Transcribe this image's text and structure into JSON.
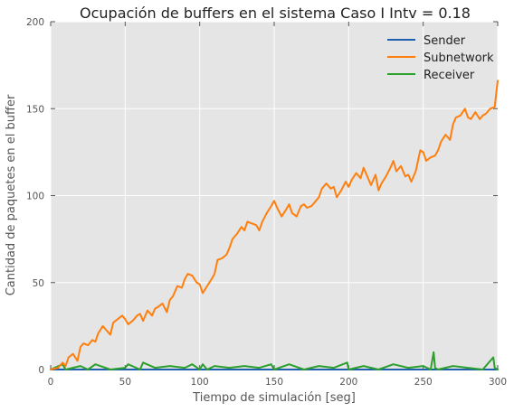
{
  "chart_data": {
    "type": "line",
    "title": "Ocupación de buffers en el sistema Caso I Intv = 0.18",
    "xlabel": "Tiempo de simulación [seg]",
    "ylabel": "Cantidad de paquetes en el buffer",
    "xlim": [
      0,
      300
    ],
    "ylim": [
      0,
      200
    ],
    "xticks": [
      0,
      50,
      100,
      150,
      200,
      250,
      300
    ],
    "yticks": [
      0,
      50,
      100,
      150,
      200
    ],
    "grid": true,
    "legend_position": "top-right",
    "background": "#e5e5e5",
    "series": [
      {
        "name": "Sender",
        "color": "#1f5fae",
        "x": [
          0,
          300
        ],
        "y": [
          0,
          0
        ]
      },
      {
        "name": "Subnetwork",
        "color": "#ff7f0e",
        "x": [
          0,
          5,
          8,
          10,
          12,
          15,
          18,
          20,
          22,
          25,
          28,
          30,
          32,
          35,
          38,
          40,
          42,
          45,
          48,
          50,
          52,
          55,
          58,
          60,
          62,
          65,
          68,
          70,
          72,
          75,
          78,
          80,
          82,
          85,
          88,
          90,
          92,
          95,
          98,
          100,
          102,
          105,
          108,
          110,
          112,
          115,
          118,
          120,
          122,
          125,
          128,
          130,
          132,
          135,
          138,
          140,
          142,
          145,
          148,
          150,
          152,
          155,
          158,
          160,
          162,
          165,
          168,
          170,
          172,
          175,
          178,
          180,
          182,
          185,
          188,
          190,
          192,
          195,
          198,
          200,
          202,
          205,
          208,
          210,
          212,
          215,
          218,
          220,
          222,
          225,
          228,
          230,
          232,
          235,
          238,
          240,
          242,
          245,
          248,
          250,
          252,
          255,
          258,
          260,
          262,
          265,
          268,
          270,
          272,
          275,
          278,
          280,
          282,
          285,
          288,
          290,
          292,
          295,
          298,
          300
        ],
        "y": [
          0,
          1,
          4,
          2,
          7,
          9,
          5,
          13,
          15,
          14,
          17,
          16,
          21,
          25,
          22,
          20,
          27,
          29,
          31,
          29,
          26,
          28,
          31,
          32,
          28,
          34,
          31,
          35,
          36,
          38,
          33,
          40,
          42,
          48,
          47,
          52,
          55,
          54,
          50,
          49,
          44,
          48,
          52,
          55,
          63,
          64,
          66,
          70,
          75,
          78,
          82,
          80,
          85,
          84,
          83,
          80,
          85,
          90,
          94,
          97,
          93,
          88,
          92,
          95,
          90,
          88,
          94,
          95,
          93,
          94,
          97,
          99,
          104,
          107,
          104,
          105,
          99,
          103,
          108,
          105,
          109,
          113,
          110,
          116,
          112,
          106,
          112,
          103,
          107,
          111,
          116,
          120,
          114,
          117,
          111,
          112,
          108,
          114,
          126,
          125,
          120,
          122,
          123,
          126,
          131,
          135,
          132,
          141,
          145,
          146,
          150,
          145,
          144,
          148,
          144,
          146,
          147,
          150,
          151,
          166
        ]
      },
      {
        "name": "Receiver",
        "color": "#2ca02c",
        "x": [
          0,
          8,
          10,
          20,
          25,
          30,
          40,
          50,
          52,
          60,
          62,
          70,
          80,
          90,
          95,
          100,
          102,
          105,
          110,
          120,
          130,
          140,
          148,
          150,
          160,
          170,
          180,
          190,
          199,
          200,
          210,
          220,
          230,
          240,
          250,
          255,
          257,
          258,
          260,
          270,
          280,
          290,
          297,
          298,
          300
        ],
        "y": [
          0,
          3,
          0,
          2,
          0,
          3,
          0,
          1,
          3,
          0,
          4,
          1,
          2,
          1,
          3,
          0,
          3,
          0,
          2,
          1,
          2,
          1,
          3,
          0,
          3,
          0,
          2,
          1,
          4,
          0,
          2,
          0,
          3,
          1,
          2,
          0,
          10,
          1,
          0,
          2,
          1,
          0,
          7,
          1,
          0
        ]
      }
    ]
  }
}
